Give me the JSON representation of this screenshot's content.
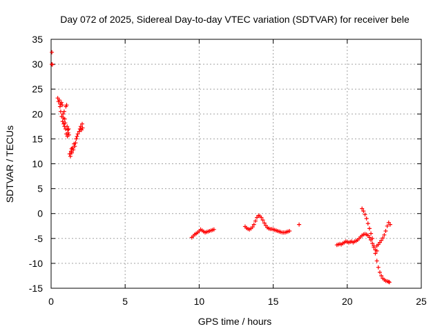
{
  "chart_data": {
    "type": "scatter",
    "title": "Day 072 of 2025, Sidereal Day-to-day VTEC variation (SDTVAR) for receiver bele",
    "xlabel": "GPS time / hours",
    "ylabel": "SDTVAR / TECUs",
    "xlim": [
      0,
      25
    ],
    "ylim": [
      -15,
      35
    ],
    "xticks": [
      0,
      5,
      10,
      15,
      20,
      25
    ],
    "yticks": [
      -15,
      -10,
      -5,
      0,
      5,
      10,
      15,
      20,
      25,
      30,
      35
    ],
    "grid": true,
    "marker": "plus",
    "color": "#ff0000",
    "series": [
      {
        "name": "SDTVAR",
        "x": [
          0.05,
          0.05,
          0.08,
          0.45,
          0.5,
          0.55,
          0.6,
          0.62,
          0.65,
          0.7,
          0.72,
          0.75,
          0.78,
          0.8,
          0.82,
          0.85,
          0.88,
          0.9,
          0.92,
          0.95,
          0.98,
          1.0,
          1.02,
          1.05,
          1.08,
          1.1,
          1.12,
          1.15,
          1.18,
          1.2,
          1.25,
          1.3,
          1.35,
          1.38,
          1.4,
          1.45,
          1.5,
          1.55,
          1.6,
          1.65,
          1.7,
          1.75,
          1.8,
          1.9,
          1.95,
          2.0,
          2.05,
          2.1,
          2.12,
          9.5,
          9.6,
          9.7,
          9.8,
          9.9,
          10.0,
          10.1,
          10.2,
          10.3,
          10.4,
          10.5,
          10.6,
          10.7,
          10.8,
          10.9,
          11.0,
          13.1,
          13.2,
          13.3,
          13.4,
          13.5,
          13.6,
          13.7,
          13.8,
          13.9,
          14.0,
          14.1,
          14.2,
          14.3,
          14.4,
          14.5,
          14.6,
          14.7,
          14.8,
          14.9,
          15.0,
          15.1,
          15.2,
          15.3,
          15.4,
          15.5,
          15.6,
          15.7,
          15.8,
          15.9,
          16.0,
          16.1,
          16.75,
          19.3,
          19.4,
          19.5,
          19.6,
          19.7,
          19.8,
          19.9,
          20.0,
          20.1,
          20.2,
          20.3,
          20.4,
          20.5,
          20.6,
          20.7,
          20.8,
          20.9,
          21.0,
          21.1,
          21.2,
          21.3,
          21.4,
          21.5,
          21.6,
          21.7,
          21.8,
          21.9,
          22.0,
          21.0,
          21.1,
          21.2,
          21.3,
          21.4,
          21.5,
          21.6,
          21.7,
          21.8,
          21.9,
          22.0,
          22.1,
          22.2,
          22.3,
          22.4,
          22.5,
          22.6,
          22.7,
          22.8,
          22.85,
          22.0,
          22.1,
          22.2,
          22.3,
          22.4,
          22.5,
          22.6,
          22.7,
          22.8,
          22.9
        ],
        "y": [
          32.4,
          30.0,
          29.9,
          23.2,
          22.5,
          22.8,
          21.5,
          22.0,
          20.5,
          22.3,
          19.5,
          21.8,
          18.5,
          20.0,
          19.2,
          18.0,
          20.5,
          17.5,
          19.0,
          18.2,
          17.0,
          21.5,
          16.0,
          21.8,
          17.5,
          15.5,
          16.8,
          16.2,
          17.0,
          15.8,
          12.0,
          11.5,
          12.5,
          13.0,
          12.2,
          13.2,
          12.8,
          14.0,
          13.5,
          14.2,
          15.0,
          15.5,
          16.0,
          16.5,
          17.0,
          17.5,
          16.8,
          18.0,
          17.2,
          -4.8,
          -4.5,
          -4.2,
          -4.0,
          -3.8,
          -3.5,
          -3.2,
          -3.4,
          -3.6,
          -3.8,
          -3.7,
          -3.6,
          -3.5,
          -3.4,
          -3.3,
          -3.2,
          -2.6,
          -2.9,
          -3.1,
          -3.2,
          -3.0,
          -2.7,
          -2.2,
          -1.5,
          -0.8,
          -0.4,
          -0.5,
          -0.8,
          -1.3,
          -1.9,
          -2.4,
          -2.8,
          -3.0,
          -3.1,
          -3.1,
          -3.2,
          -3.3,
          -3.4,
          -3.5,
          -3.6,
          -3.7,
          -3.8,
          -3.8,
          -3.8,
          -3.7,
          -3.6,
          -3.5,
          -2.2,
          -6.3,
          -6.2,
          -6.1,
          -6.2,
          -6.0,
          -5.8,
          -5.6,
          -5.7,
          -5.8,
          -5.7,
          -5.6,
          -5.8,
          -5.6,
          -5.5,
          -5.3,
          -5.0,
          -4.7,
          -4.4,
          -4.2,
          -4.1,
          -4.2,
          -4.4,
          -4.8,
          -5.3,
          -6.0,
          -6.8,
          -7.3,
          -7.5,
          1.0,
          0.5,
          -0.2,
          -1.0,
          -2.0,
          -3.0,
          -4.0,
          -5.0,
          -6.5,
          -8.0,
          -9.5,
          -10.8,
          -11.8,
          -12.5,
          -13.0,
          -13.3,
          -13.5,
          -13.6,
          -13.7,
          -13.8,
          -6.5,
          -6.2,
          -5.8,
          -5.4,
          -4.9,
          -4.3,
          -3.5,
          -2.5,
          -1.8,
          -2.2
        ]
      }
    ]
  }
}
